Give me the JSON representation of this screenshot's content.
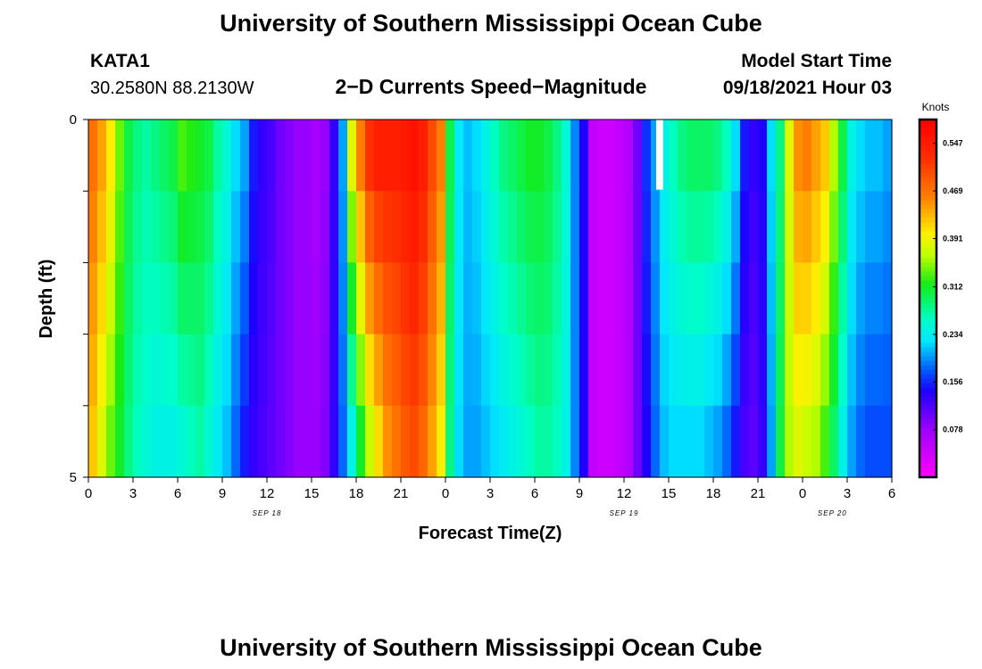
{
  "header": {
    "title": "University of Southern Mississippi Ocean Cube",
    "station": "KATA1",
    "coordinates": "30.2580N  88.2130W",
    "subtitle": "2−D Currents Speed−Magnitude",
    "model_label": "Model Start Time",
    "model_time": "09/18/2021 Hour 03"
  },
  "footer": {
    "title": "University of Southern Mississippi Ocean Cube"
  },
  "chart_data": {
    "type": "heatmap",
    "title": "2−D Currents Speed−Magnitude",
    "xlabel": "Forecast Time(Z)",
    "ylabel": "Depth (ft)",
    "x_ticks": [
      "0",
      "3",
      "6",
      "9",
      "12",
      "15",
      "18",
      "21",
      "0",
      "3",
      "6",
      "9",
      "12",
      "15",
      "18",
      "21",
      "0",
      "3",
      "6"
    ],
    "x_range_hours": [
      0,
      54
    ],
    "date_labels": [
      {
        "text": "SEP 18",
        "hour": 12
      },
      {
        "text": "SEP 19",
        "hour": 36
      },
      {
        "text": "SEP 20",
        "hour": 50
      }
    ],
    "y_ticks": [
      "0",
      "5"
    ],
    "y_range_ft": [
      0,
      5
    ],
    "depth_levels": 5,
    "colorbar": {
      "unit": "Knots",
      "min": 0.0,
      "max": 0.586,
      "ticks": [
        "0.547",
        "0.469",
        "0.391",
        "0.312",
        "0.234",
        "0.156",
        "0.078"
      ],
      "tick_values": [
        0.547,
        0.469,
        0.391,
        0.312,
        0.234,
        0.156,
        0.078
      ]
    },
    "speed_surface": [
      0.47,
      0.44,
      0.4,
      0.34,
      0.3,
      0.28,
      0.27,
      0.28,
      0.29,
      0.3,
      0.33,
      0.32,
      0.31,
      0.3,
      0.27,
      0.25,
      0.22,
      0.2,
      0.15,
      0.13,
      0.12,
      0.1,
      0.09,
      0.08,
      0.08,
      0.07,
      0.08,
      0.13,
      0.2,
      0.38,
      0.46,
      0.52,
      0.54,
      0.54,
      0.54,
      0.55,
      0.56,
      0.54,
      0.5,
      0.46,
      0.3,
      0.23,
      0.21,
      0.22,
      0.24,
      0.26,
      0.28,
      0.29,
      0.3,
      0.31,
      0.31,
      0.3,
      0.28,
      0.25,
      0.19,
      0.14,
      0.05,
      0.04,
      0.04,
      0.05,
      0.06,
      0.1,
      0.16,
      0.2,
      0.24,
      0.26,
      0.28,
      0.29,
      0.29,
      0.29,
      0.28,
      0.26,
      0.22,
      0.15,
      0.13,
      0.14,
      0.22,
      0.28,
      0.38,
      0.45,
      0.46,
      0.44,
      0.42,
      0.36,
      0.3,
      0.24,
      0.22,
      0.21,
      0.21,
      0.2
    ],
    "speed_bottom": [
      0.42,
      0.38,
      0.34,
      0.31,
      0.28,
      0.26,
      0.25,
      0.24,
      0.24,
      0.24,
      0.25,
      0.26,
      0.27,
      0.25,
      0.23,
      0.21,
      0.18,
      0.15,
      0.13,
      0.12,
      0.11,
      0.1,
      0.09,
      0.08,
      0.08,
      0.08,
      0.09,
      0.13,
      0.18,
      0.24,
      0.31,
      0.37,
      0.41,
      0.45,
      0.47,
      0.49,
      0.5,
      0.48,
      0.44,
      0.4,
      0.28,
      0.22,
      0.2,
      0.2,
      0.21,
      0.22,
      0.23,
      0.24,
      0.25,
      0.26,
      0.27,
      0.27,
      0.26,
      0.24,
      0.19,
      0.14,
      0.05,
      0.04,
      0.04,
      0.05,
      0.06,
      0.1,
      0.14,
      0.18,
      0.21,
      0.22,
      0.22,
      0.22,
      0.22,
      0.21,
      0.2,
      0.18,
      0.15,
      0.12,
      0.11,
      0.13,
      0.2,
      0.3,
      0.36,
      0.38,
      0.37,
      0.36,
      0.33,
      0.29,
      0.24,
      0.2,
      0.18,
      0.17,
      0.17,
      0.17
    ],
    "missing_marker": {
      "hour": 38.4,
      "depth_level": 0
    }
  }
}
